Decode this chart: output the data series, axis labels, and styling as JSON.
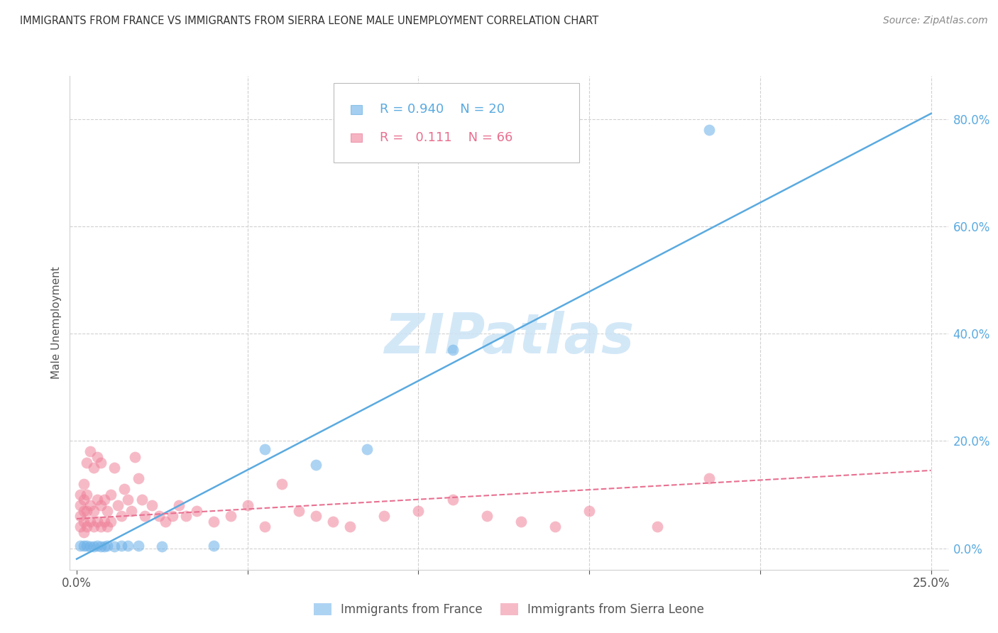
{
  "title": "IMMIGRANTS FROM FRANCE VS IMMIGRANTS FROM SIERRA LEONE MALE UNEMPLOYMENT CORRELATION CHART",
  "source": "Source: ZipAtlas.com",
  "ylabel": "Male Unemployment",
  "ytick_labels": [
    "0.0%",
    "20.0%",
    "40.0%",
    "60.0%",
    "80.0%"
  ],
  "ytick_values": [
    0.0,
    0.2,
    0.4,
    0.6,
    0.8
  ],
  "xlim": [
    -0.002,
    0.255
  ],
  "ylim": [
    -0.04,
    0.88
  ],
  "watermark": "ZIPatlas",
  "france_scatter_x": [
    0.001,
    0.002,
    0.003,
    0.004,
    0.005,
    0.006,
    0.007,
    0.008,
    0.009,
    0.011,
    0.013,
    0.015,
    0.018,
    0.025,
    0.04,
    0.055,
    0.07,
    0.085,
    0.11,
    0.185
  ],
  "france_scatter_y": [
    0.005,
    0.005,
    0.005,
    0.004,
    0.003,
    0.005,
    0.004,
    0.003,
    0.005,
    0.004,
    0.005,
    0.005,
    0.005,
    0.004,
    0.005,
    0.185,
    0.155,
    0.185,
    0.37,
    0.78
  ],
  "sierra_leone_scatter_x": [
    0.001,
    0.001,
    0.001,
    0.001,
    0.002,
    0.002,
    0.002,
    0.002,
    0.002,
    0.003,
    0.003,
    0.003,
    0.003,
    0.004,
    0.004,
    0.004,
    0.005,
    0.005,
    0.005,
    0.006,
    0.006,
    0.006,
    0.007,
    0.007,
    0.007,
    0.008,
    0.008,
    0.009,
    0.009,
    0.01,
    0.01,
    0.011,
    0.012,
    0.013,
    0.014,
    0.015,
    0.016,
    0.017,
    0.018,
    0.019,
    0.02,
    0.022,
    0.024,
    0.026,
    0.028,
    0.03,
    0.032,
    0.035,
    0.04,
    0.045,
    0.05,
    0.055,
    0.06,
    0.065,
    0.07,
    0.075,
    0.08,
    0.09,
    0.1,
    0.11,
    0.12,
    0.13,
    0.14,
    0.15,
    0.17,
    0.185
  ],
  "sierra_leone_scatter_y": [
    0.04,
    0.06,
    0.08,
    0.1,
    0.03,
    0.05,
    0.07,
    0.09,
    0.12,
    0.04,
    0.07,
    0.1,
    0.16,
    0.05,
    0.08,
    0.18,
    0.04,
    0.07,
    0.15,
    0.05,
    0.09,
    0.17,
    0.04,
    0.08,
    0.16,
    0.05,
    0.09,
    0.04,
    0.07,
    0.05,
    0.1,
    0.15,
    0.08,
    0.06,
    0.11,
    0.09,
    0.07,
    0.17,
    0.13,
    0.09,
    0.06,
    0.08,
    0.06,
    0.05,
    0.06,
    0.08,
    0.06,
    0.07,
    0.05,
    0.06,
    0.08,
    0.04,
    0.12,
    0.07,
    0.06,
    0.05,
    0.04,
    0.06,
    0.07,
    0.09,
    0.06,
    0.05,
    0.04,
    0.07,
    0.04,
    0.13
  ],
  "france_line_x": [
    0.0,
    0.25
  ],
  "france_line_y": [
    -0.02,
    0.81
  ],
  "sl_line_x": [
    0.0,
    0.25
  ],
  "sl_line_y": [
    0.055,
    0.145
  ],
  "france_color": "#6ab0e8",
  "sierra_leone_color": "#f0829a",
  "france_line_color": "#5aaae0",
  "sierra_leone_line_color": "#e87090",
  "background_color": "#ffffff",
  "grid_color": "#d0d0d0",
  "title_color": "#333333",
  "source_color": "#888888",
  "ytick_color": "#5aaae0",
  "xtick_color": "#555555",
  "ylabel_color": "#555555"
}
